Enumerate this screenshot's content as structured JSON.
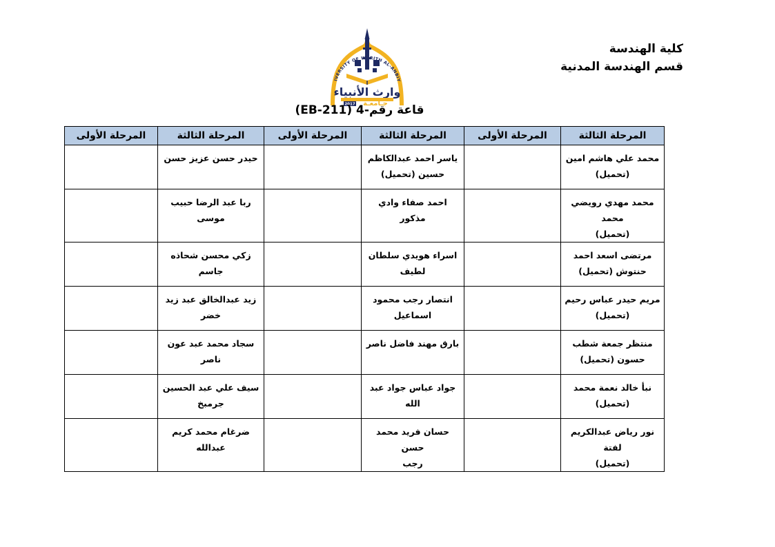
{
  "document": {
    "faculty": "كلية الهندسة",
    "department": "قسم الهندسة المدنية",
    "hall_title": "قاعة رقم-4 (EB-211)"
  },
  "logo": {
    "arabic_name": "وارث الأنبياء",
    "english_name": "UNIVERSITY OF WARITH AL-ANBIYAA",
    "year": "2017",
    "colors": {
      "gold": "#f2b322",
      "navy": "#1e2a63"
    }
  },
  "table": {
    "header_fill": "#b8cce4",
    "columns": [
      {
        "label": "المرحلة الثالثة",
        "stage": "third",
        "students": [
          "محمد علي هاشم امين\n(تحميل)",
          "محمد مهدي رويضي محمد\n(تحميل)",
          "مرتضى اسعد احمد\nحنتوش (تحميل)",
          "مريم حيدر عباس رحيم\n(تحميل)",
          "منتظر جمعة شطب\nحسون (تحميل)",
          "نبأ خالد نعمة محمد\n(تحميل)",
          "نور رياض عبدالكريم لفتة\n(تحميل)"
        ]
      },
      {
        "label": "المرحلة الأولى",
        "stage": "first",
        "students": [
          "",
          "",
          "",
          "",
          "",
          "",
          ""
        ]
      },
      {
        "label": "المرحلة الثالثة",
        "stage": "third",
        "students": [
          "ياسر احمد عبدالكاظم\nحسين (تحميل)",
          "احمد صفاء وادي مذكور",
          "اسراء هويدي سلطان\nلطيف",
          "انتصار رجب محمود\nاسماعيل",
          "بارق مهند فاضل ناصر",
          "جواد عباس جواد عبد الله",
          "حسان فريد محمد حسن\nرجب"
        ]
      },
      {
        "label": "المرحلة الأولى",
        "stage": "first",
        "students": [
          "",
          "",
          "",
          "",
          "",
          "",
          ""
        ]
      },
      {
        "label": "المرحلة الثالثة",
        "stage": "third",
        "students": [
          "حيدر حسن عزيز حسن",
          "ربا عبد الرضا حبيب موسى",
          "زكي محسن شحاذه جاسم",
          "زيد عبدالخالق عبد زيد\nخضر",
          "سجاد محمد عبد عون ناصر",
          "سيف علي عبد الحسين\nجرمبخ",
          "ضرغام محمد كريم عبدالله"
        ]
      },
      {
        "label": "المرحلة الأولى",
        "stage": "first",
        "students": [
          "",
          "",
          "",
          "",
          "",
          "",
          ""
        ]
      }
    ]
  }
}
